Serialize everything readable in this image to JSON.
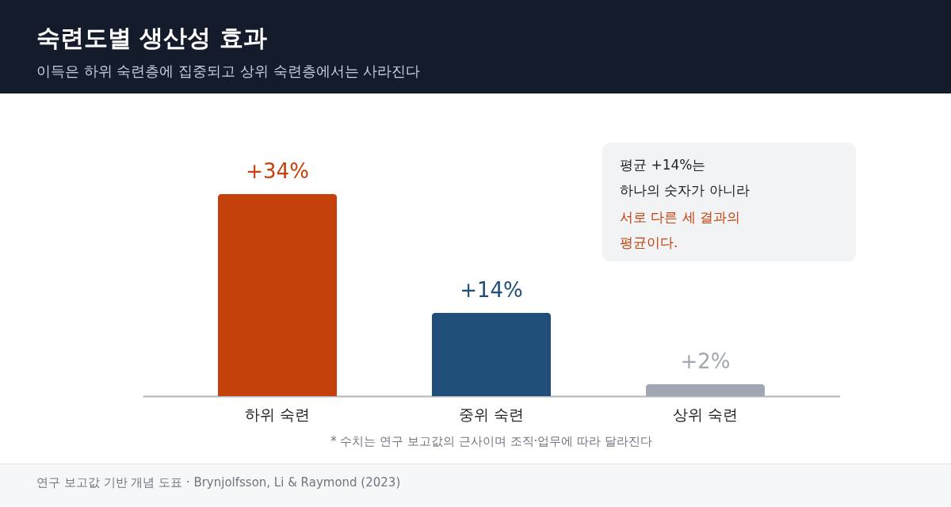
{
  "chart_data": {
    "type": "bar",
    "title": "숙련도별 생산성 효과",
    "subtitle": "이득은 하위 숙련층에 집중되고 상위 숙련층에서는 사라진다",
    "categories": [
      "하위 숙련",
      "중위 숙련",
      "상위 숙련"
    ],
    "values": [
      34,
      14,
      2
    ],
    "colors": [
      "#c4410c",
      "#1f4e79",
      "#a0a6b2"
    ],
    "value_labels": [
      "+34%",
      "+14%",
      "+2%"
    ],
    "annotations": [
      "평균 +14%는\n하나의 숫자가 아니라",
      "서로 다른 세 결과의\n평균이다.",
      "* 수치는 연구 보고값의 근사이며 조직·업무에 따라 달라진다",
      "연구 보고값 기반 개념 도표 · Brynjolfsson, Li & Raymond (2023)"
    ]
  }
}
